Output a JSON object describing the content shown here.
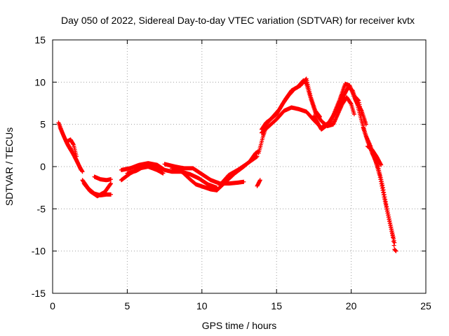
{
  "chart_data": {
    "type": "scatter",
    "title": "Day 050 of 2022, Sidereal Day-to-day VTEC variation (SDTVAR) for receiver kvtx",
    "xlabel": "GPS time / hours",
    "ylabel": "SDTVAR / TECUs",
    "xlim": [
      0,
      25
    ],
    "ylim": [
      -15,
      15
    ],
    "xticks": [
      0,
      5,
      10,
      15,
      20,
      25
    ],
    "yticks": [
      -15,
      -10,
      -5,
      0,
      5,
      10,
      15
    ],
    "grid": true,
    "marker": "plus",
    "color": "#ff0000",
    "tracks": [
      [
        [
          0.4,
          5.2
        ],
        [
          0.7,
          3.8
        ],
        [
          1.0,
          2.6
        ],
        [
          1.4,
          1.4
        ],
        [
          1.8,
          0.0
        ],
        [
          2.0,
          -0.6
        ]
      ],
      [
        [
          0.5,
          4.6
        ],
        [
          0.9,
          3.0
        ],
        [
          1.3,
          1.8
        ],
        [
          1.6,
          0.8
        ],
        [
          1.9,
          -0.4
        ]
      ],
      [
        [
          1.0,
          3.0
        ],
        [
          1.2,
          3.2
        ],
        [
          1.4,
          2.6
        ],
        [
          1.6,
          1.2
        ]
      ],
      [
        [
          2.0,
          -1.6
        ],
        [
          2.4,
          -2.6
        ],
        [
          2.8,
          -3.2
        ],
        [
          3.2,
          -3.4
        ],
        [
          3.6,
          -3.3
        ],
        [
          3.9,
          -3.3
        ]
      ],
      [
        [
          2.1,
          -2.0
        ],
        [
          2.5,
          -2.9
        ],
        [
          3.0,
          -3.5
        ],
        [
          3.5,
          -3.0
        ],
        [
          3.9,
          -2.0
        ]
      ],
      [
        [
          2.8,
          -1.2
        ],
        [
          3.2,
          -1.5
        ],
        [
          3.6,
          -1.6
        ],
        [
          3.9,
          -1.5
        ]
      ],
      [
        [
          4.6,
          -0.4
        ],
        [
          5.2,
          -0.2
        ],
        [
          5.8,
          0.2
        ],
        [
          6.4,
          0.4
        ],
        [
          7.0,
          0.2
        ],
        [
          7.5,
          -0.4
        ],
        [
          8.0,
          -0.6
        ],
        [
          8.6,
          -0.6
        ],
        [
          9.2,
          -0.9
        ],
        [
          9.8,
          -1.4
        ],
        [
          10.4,
          -2.1
        ],
        [
          11.0,
          -2.5
        ]
      ],
      [
        [
          4.6,
          -1.6
        ],
        [
          5.2,
          -0.8
        ],
        [
          5.8,
          -0.2
        ],
        [
          6.4,
          0.0
        ],
        [
          7.0,
          -0.4
        ],
        [
          7.4,
          -0.8
        ]
      ],
      [
        [
          5.0,
          -0.8
        ],
        [
          5.6,
          -0.5
        ],
        [
          6.2,
          0.1
        ],
        [
          6.8,
          0.0
        ],
        [
          7.3,
          -0.3
        ]
      ],
      [
        [
          7.5,
          0.3
        ],
        [
          8.2,
          0.0
        ],
        [
          8.8,
          -0.2
        ],
        [
          9.4,
          -0.2
        ],
        [
          10.0,
          -0.9
        ],
        [
          10.6,
          -1.6
        ],
        [
          11.2,
          -2.0
        ],
        [
          11.8,
          -2.0
        ],
        [
          12.4,
          -1.9
        ],
        [
          12.8,
          -1.8
        ]
      ],
      [
        [
          8.0,
          -0.2
        ],
        [
          8.6,
          -0.5
        ],
        [
          9.2,
          -1.5
        ],
        [
          9.6,
          -2.1
        ],
        [
          10.1,
          -2.4
        ],
        [
          10.6,
          -2.7
        ],
        [
          11.0,
          -2.8
        ]
      ],
      [
        [
          11.2,
          -2.2
        ],
        [
          11.8,
          -1.0
        ],
        [
          12.4,
          -0.4
        ],
        [
          12.9,
          0.2
        ],
        [
          13.3,
          0.7
        ],
        [
          13.7,
          1.2
        ]
      ],
      [
        [
          11.0,
          -2.8
        ],
        [
          11.6,
          -1.8
        ],
        [
          12.2,
          -0.8
        ],
        [
          12.8,
          0.0
        ],
        [
          13.2,
          0.6
        ],
        [
          13.6,
          1.6
        ],
        [
          13.8,
          1.8
        ]
      ],
      [
        [
          13.7,
          -2.3
        ],
        [
          13.9,
          -1.6
        ]
      ],
      [
        [
          13.8,
          1.6
        ],
        [
          14.1,
          3.6
        ],
        [
          14.4,
          5.2
        ],
        [
          14.8,
          6.0
        ],
        [
          15.2,
          6.8
        ],
        [
          15.6,
          8.0
        ],
        [
          16.0,
          9.0
        ],
        [
          16.4,
          9.4
        ],
        [
          16.8,
          10.2
        ],
        [
          17.0,
          9.8
        ],
        [
          17.3,
          8.0
        ],
        [
          17.6,
          6.4
        ],
        [
          18.0,
          5.4
        ],
        [
          18.4,
          4.8
        ],
        [
          18.8,
          5.0
        ],
        [
          19.1,
          6.2
        ],
        [
          19.4,
          7.4
        ],
        [
          19.7,
          8.2
        ],
        [
          20.0,
          7.4
        ],
        [
          20.2,
          6.2
        ]
      ],
      [
        [
          14.0,
          4.4
        ],
        [
          14.3,
          5.2
        ],
        [
          14.6,
          5.6
        ],
        [
          15.0,
          6.2
        ],
        [
          15.4,
          7.4
        ],
        [
          15.8,
          8.4
        ],
        [
          16.2,
          9.2
        ],
        [
          16.6,
          9.6
        ],
        [
          17.0,
          10.4
        ],
        [
          17.3,
          8.2
        ],
        [
          17.6,
          6.6
        ],
        [
          17.9,
          5.9
        ]
      ],
      [
        [
          14.0,
          4.0
        ],
        [
          14.5,
          4.8
        ],
        [
          15.0,
          5.6
        ],
        [
          15.5,
          6.6
        ],
        [
          16.0,
          7.0
        ],
        [
          16.5,
          6.8
        ],
        [
          17.0,
          6.5
        ],
        [
          17.5,
          5.5
        ],
        [
          18.0,
          4.6
        ],
        [
          18.5,
          5.2
        ],
        [
          19.0,
          6.6
        ],
        [
          19.5,
          8.4
        ],
        [
          19.8,
          9.4
        ],
        [
          20.1,
          9.0
        ],
        [
          20.4,
          7.4
        ],
        [
          20.7,
          5.4
        ]
      ],
      [
        [
          17.5,
          6.0
        ],
        [
          18.0,
          4.4
        ],
        [
          18.6,
          5.2
        ],
        [
          19.2,
          7.8
        ],
        [
          19.6,
          9.8
        ],
        [
          19.9,
          9.6
        ],
        [
          20.3,
          7.8
        ],
        [
          20.7,
          6.6
        ],
        [
          21.0,
          5.0
        ]
      ],
      [
        [
          20.3,
          8.2
        ],
        [
          20.5,
          7.8
        ],
        [
          20.7,
          6.2
        ]
      ],
      [
        [
          20.7,
          5.4
        ],
        [
          21.0,
          3.6
        ],
        [
          21.3,
          2.4
        ],
        [
          21.6,
          0.8
        ],
        [
          21.9,
          -1.0
        ],
        [
          22.2,
          -3.6
        ],
        [
          22.5,
          -6.0
        ],
        [
          22.8,
          -8.4
        ],
        [
          22.9,
          -9.8
        ],
        [
          23.0,
          -10.0
        ]
      ],
      [
        [
          20.8,
          4.6
        ],
        [
          21.1,
          3.0
        ],
        [
          21.4,
          1.6
        ],
        [
          21.8,
          0.0
        ],
        [
          22.1,
          -2.2
        ],
        [
          22.4,
          -5.0
        ],
        [
          22.7,
          -7.4
        ],
        [
          22.9,
          -9.0
        ]
      ],
      [
        [
          21.1,
          2.4
        ],
        [
          21.4,
          2.0
        ],
        [
          21.7,
          1.2
        ],
        [
          22.0,
          0.2
        ]
      ]
    ]
  }
}
